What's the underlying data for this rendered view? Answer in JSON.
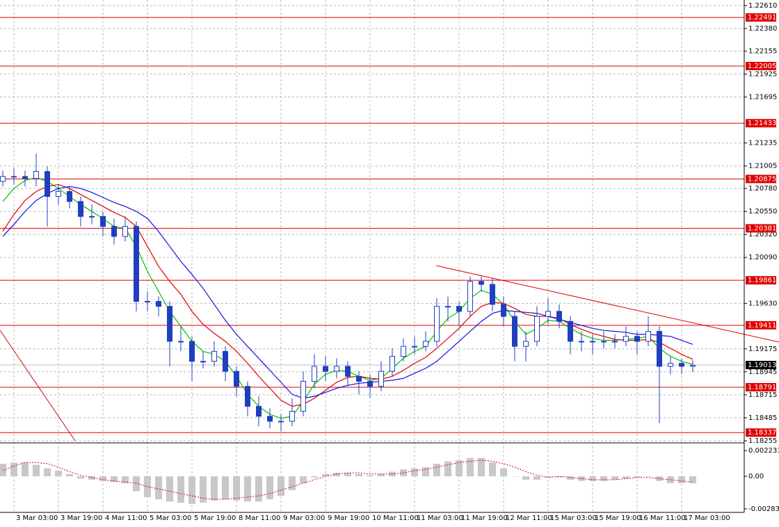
{
  "chart_data": [
    {
      "type": "candlestick",
      "categories": [
        null,
        "3 Mar 03:00",
        null,
        null,
        null,
        "3 Mar 19:00",
        null,
        null,
        null,
        "4 Mar 11:00",
        null,
        null,
        null,
        "5 Mar 03:00",
        null,
        null,
        null,
        "5 Mar 19:00",
        null,
        null,
        null,
        "8 Mar 11:00",
        null,
        null,
        null,
        "9 Mar 03:00",
        null,
        null,
        null,
        "9 Mar 19:00",
        null,
        null,
        null,
        "10 Mar 11:00",
        null,
        null,
        null,
        "11 Mar 03:00",
        null,
        null,
        null,
        "11 Mar 19:00",
        null,
        null,
        null,
        "12 Mar 11:00",
        null,
        null,
        null,
        "15 Mar 03:00",
        null,
        null,
        null,
        "15 Mar 19:00",
        null,
        null,
        null,
        "16 Mar 11:00",
        null,
        null,
        null,
        "17 Mar 03:00",
        null
      ],
      "open": [
        1.2085,
        1.209,
        1.209,
        1.2088,
        1.2095,
        1.207,
        1.2075,
        1.2065,
        1.205,
        1.205,
        1.204,
        1.203,
        1.204,
        1.1965,
        1.1965,
        1.196,
        1.1925,
        1.1925,
        1.1905,
        1.1905,
        1.1915,
        1.1895,
        1.188,
        1.186,
        1.185,
        1.1845,
        1.1845,
        1.1855,
        1.1885,
        1.19,
        1.1895,
        1.19,
        1.189,
        1.1885,
        1.188,
        1.1895,
        1.191,
        1.192,
        1.192,
        1.1925,
        1.196,
        1.196,
        1.1955,
        1.1985,
        1.1982,
        1.1962,
        1.195,
        1.192,
        1.1925,
        1.195,
        1.1955,
        1.1945,
        1.1925,
        1.1925,
        1.1925,
        1.1925,
        1.1925,
        1.193,
        1.1925,
        1.1935,
        1.19,
        1.1903,
        1.19
      ],
      "high": [
        1.2096,
        1.2098,
        1.2096,
        1.2113,
        1.21,
        1.2082,
        1.208,
        1.207,
        1.2062,
        1.2055,
        1.2048,
        1.205,
        1.2045,
        1.1975,
        1.197,
        1.1965,
        1.194,
        1.193,
        1.1915,
        1.1925,
        1.192,
        1.19,
        1.1885,
        1.187,
        1.1858,
        1.1852,
        1.1868,
        1.1895,
        1.1912,
        1.191,
        1.1908,
        1.1905,
        1.1895,
        1.1892,
        1.1905,
        1.1918,
        1.1928,
        1.193,
        1.1935,
        1.1968,
        1.197,
        1.1965,
        1.199,
        1.199,
        1.1988,
        1.197,
        1.1955,
        1.1935,
        1.196,
        1.1968,
        1.1962,
        1.195,
        1.1935,
        1.1932,
        1.1935,
        1.1932,
        1.194,
        1.1935,
        1.195,
        1.194,
        1.191,
        1.1908,
        1.1906
      ],
      "low": [
        1.208,
        1.2082,
        1.208,
        1.208,
        1.204,
        1.2062,
        1.2058,
        1.204,
        1.2042,
        1.203,
        1.2022,
        1.2025,
        1.1955,
        1.1955,
        1.195,
        1.19,
        1.1915,
        1.1885,
        1.1898,
        1.19,
        1.1885,
        1.187,
        1.185,
        1.184,
        1.1838,
        1.1835,
        1.184,
        1.185,
        1.1878,
        1.1885,
        1.1888,
        1.188,
        1.1872,
        1.1868,
        1.1875,
        1.189,
        1.1905,
        1.1912,
        1.1915,
        1.192,
        1.1945,
        1.194,
        1.195,
        1.1975,
        1.1955,
        1.194,
        1.1905,
        1.1905,
        1.192,
        1.1942,
        1.1938,
        1.1912,
        1.1915,
        1.1912,
        1.1918,
        1.1918,
        1.192,
        1.1912,
        1.192,
        1.1843,
        1.1892,
        1.1892,
        1.1894
      ],
      "close": [
        1.209,
        1.209,
        1.2088,
        1.2095,
        1.207,
        1.2075,
        1.2065,
        1.205,
        1.205,
        1.204,
        1.203,
        1.204,
        1.1965,
        1.1965,
        1.196,
        1.1925,
        1.1925,
        1.1905,
        1.1905,
        1.1915,
        1.1895,
        1.188,
        1.186,
        1.185,
        1.1845,
        1.1845,
        1.1855,
        1.1885,
        1.19,
        1.1895,
        1.19,
        1.189,
        1.1885,
        1.188,
        1.1895,
        1.191,
        1.192,
        1.192,
        1.1925,
        1.196,
        1.196,
        1.1955,
        1.1985,
        1.1982,
        1.1962,
        1.195,
        1.192,
        1.1925,
        1.195,
        1.1955,
        1.1945,
        1.1925,
        1.1925,
        1.1925,
        1.1925,
        1.1925,
        1.193,
        1.1925,
        1.1935,
        1.19,
        1.1903,
        1.19,
        1.1901
      ],
      "color": "#1f3fbf",
      "lines": [
        {
          "color": "#00c000",
          "values": [
            1.2065,
            1.2078,
            1.2086,
            1.2089,
            1.2085,
            1.2078,
            1.207,
            1.2062,
            1.2055,
            1.2048,
            1.204,
            1.2038,
            1.202,
            1.1995,
            1.1975,
            1.1955,
            1.194,
            1.1925,
            1.1915,
            1.1912,
            1.1905,
            1.189,
            1.1872,
            1.186,
            1.1852,
            1.1848,
            1.185,
            1.1865,
            1.1882,
            1.1892,
            1.1896,
            1.1895,
            1.189,
            1.1886,
            1.1888,
            1.1898,
            1.1908,
            1.1915,
            1.192,
            1.1935,
            1.1948,
            1.1955,
            1.1968,
            1.1976,
            1.1972,
            1.1962,
            1.1945,
            1.1932,
            1.1938,
            1.1946,
            1.1945,
            1.1938,
            1.1932,
            1.1928,
            1.1926,
            1.1926,
            1.1927,
            1.1928,
            1.193,
            1.1918,
            1.191,
            1.1905,
            1.1902
          ]
        },
        {
          "color": "#e00000",
          "values": [
            1.2035,
            1.2052,
            1.2066,
            1.2075,
            1.208,
            1.2082,
            1.2078,
            1.2072,
            1.2066,
            1.206,
            1.2054,
            1.2049,
            1.204,
            1.202,
            1.2,
            1.1985,
            1.1972,
            1.1955,
            1.1942,
            1.1933,
            1.1925,
            1.1915,
            1.1903,
            1.189,
            1.1878,
            1.1866,
            1.186,
            1.1862,
            1.1868,
            1.1876,
            1.1884,
            1.1889,
            1.189,
            1.1888,
            1.1887,
            1.189,
            1.1896,
            1.1903,
            1.1909,
            1.1918,
            1.1928,
            1.1938,
            1.195,
            1.196,
            1.1964,
            1.1963,
            1.1958,
            1.1952,
            1.195,
            1.195,
            1.1948,
            1.1942,
            1.1937,
            1.1933,
            1.193,
            1.1927,
            1.1926,
            1.1926,
            1.1927,
            1.1924,
            1.1918,
            1.1912,
            1.1907
          ]
        },
        {
          "color": "#1010e0",
          "values": [
            1.203,
            1.2042,
            1.2055,
            1.2066,
            1.2073,
            1.2078,
            1.208,
            1.2078,
            1.2074,
            1.2069,
            1.2064,
            1.206,
            1.2055,
            1.2048,
            1.2035,
            1.202,
            1.2005,
            1.1992,
            1.1978,
            1.1962,
            1.1946,
            1.1932,
            1.192,
            1.1908,
            1.1896,
            1.1884,
            1.1872,
            1.1868,
            1.187,
            1.1874,
            1.1878,
            1.1881,
            1.1883,
            1.1884,
            1.1885,
            1.1886,
            1.1888,
            1.1893,
            1.1898,
            1.1905,
            1.1915,
            1.1925,
            1.1935,
            1.1945,
            1.1953,
            1.1956,
            1.1955,
            1.1954,
            1.1953,
            1.195,
            1.1947,
            1.1944,
            1.1941,
            1.1938,
            1.1936,
            1.1935,
            1.1934,
            1.1932,
            1.1932,
            1.1931,
            1.193,
            1.1926,
            1.1922
          ]
        }
      ],
      "levels": {
        "color": "#e00000",
        "values": [
          1.22491,
          1.22005,
          1.21433,
          1.20875,
          1.20381,
          1.19861,
          1.19411,
          1.18791,
          1.18337
        ]
      },
      "last_price": 1.19013,
      "trendlines": [
        {
          "color": "#e00000",
          "x": [
            -0.25,
            6.5
          ],
          "y": [
            1.19361,
            1.18255
          ]
        },
        {
          "color": "#e00000",
          "x": [
            38.94,
            69.75
          ],
          "y": [
            1.20008,
            1.19243
          ]
        }
      ],
      "ylim": [
        1.18234,
        1.22666
      ],
      "yticks": [
        {
          "value": 1.2261,
          "label": "1.22610"
        },
        {
          "value": 1.2238,
          "label": "1.22380"
        },
        1.22155,
        1.21925,
        1.21695,
        1.21235,
        1.21005,
        {
          "value": 1.2078,
          "label": "1.20780"
        },
        {
          "value": 1.2055,
          "label": "1.20550"
        },
        {
          "value": 1.2032,
          "label": "1.20320"
        },
        {
          "value": 1.2009,
          "label": "1.20090"
        },
        {
          "value": 1.1963,
          "label": "1.19630"
        },
        1.19175,
        1.18945,
        1.18715,
        1.18485,
        1.18255
      ],
      "grid": true
    },
    {
      "type": "macd",
      "histogram": [
        0.0011,
        0.0012,
        0.0012,
        0.001,
        0.0007,
        0.0005,
        0.0002,
        -0.0002,
        -0.0003,
        -0.0004,
        -0.0005,
        -0.0006,
        -0.0013,
        -0.0018,
        -0.002,
        -0.0022,
        -0.0023,
        -0.0024,
        -0.0023,
        -0.0021,
        -0.002,
        -0.0021,
        -0.0022,
        -0.0022,
        -0.002,
        -0.0017,
        -0.0012,
        -0.0006,
        -0.0001,
        0.0002,
        0.0003,
        0.0003,
        0.0002,
        0.0001,
        0.0002,
        0.0004,
        0.0006,
        0.0007,
        0.0008,
        0.0011,
        0.0013,
        0.0014,
        0.0016,
        0.0016,
        0.0012,
        0.0007,
        0,
        -0.0003,
        -0.0003,
        -0.0001,
        -0.0001,
        -0.0003,
        -0.0004,
        -0.0004,
        -0.0004,
        -0.0003,
        -0.0002,
        -0.0001,
        0,
        -0.0004,
        -0.0006,
        -0.0006,
        -0.0006
      ],
      "signal": [
        0.0005,
        0.0009,
        0.0012,
        0.0012,
        0.0011,
        0.0008,
        0.0004,
        0.0001,
        -0.0001,
        -0.0003,
        -0.0004,
        -0.0005,
        -0.0006,
        -0.0009,
        -0.0011,
        -0.0013,
        -0.0015,
        -0.0017,
        -0.0019,
        -0.002,
        -0.002,
        -0.0019,
        -0.0018,
        -0.0017,
        -0.0015,
        -0.0012,
        -0.0009,
        -0.0006,
        -0.0003,
        0,
        0.0002,
        0.0003,
        0.0003,
        0.0002,
        0.0002,
        0.0002,
        0.0003,
        0.0005,
        0.0006,
        0.0008,
        0.001,
        0.0012,
        0.0013,
        0.0014,
        0.0013,
        0.0011,
        0.0008,
        0.0004,
        0.0001,
        -0.0001,
        0,
        -0.0001,
        -0.0002,
        -0.0003,
        -0.0003,
        -0.0003,
        -0.0002,
        -0.0001,
        -0.0001,
        -0.0002,
        -0.0003,
        -0.0004,
        -0.0005
      ],
      "histogram_color": "#c8c8c8",
      "signal_color": "#e00000",
      "ylim": [
        -0.00314,
        0.00285
      ],
      "yticks": [
        0.002233,
        {
          "value": 0,
          "label": "0.00"
        },
        -0.002834
      ]
    }
  ]
}
